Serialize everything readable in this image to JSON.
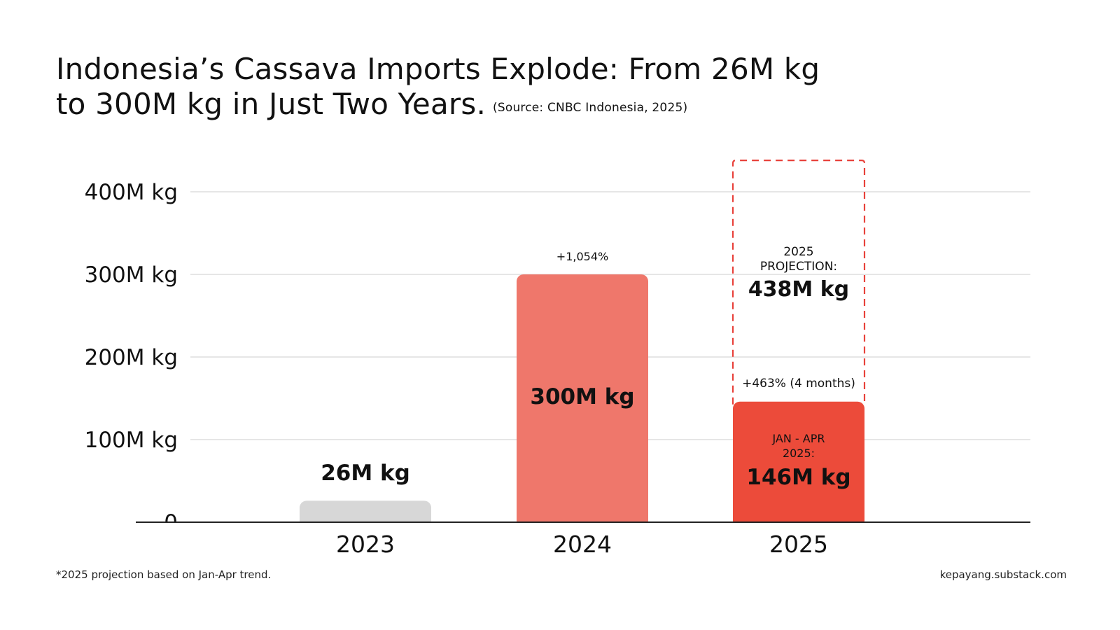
{
  "header": {
    "title_line1": "Indonesia’s Cassava Imports Explode: From 26M kg",
    "title_line2": "to 300M kg in Just Two Years.",
    "source": "(Source: CNBC Indonesia, 2025)"
  },
  "footer": {
    "footnote": "*2025 projection based on Jan-Apr trend.",
    "credit": "kepayang.substack.com"
  },
  "colors": {
    "bar_2023": "#d7d7d7",
    "bar_2024": "#ef776b",
    "bar_2025": "#ec4b3a",
    "projection_outline": "#e8413a",
    "gridline": "#dddddd",
    "axis": "#222222"
  },
  "chart_data": {
    "type": "bar",
    "title": "Indonesia’s Cassava Imports Explode: From 26M kg to 300M kg in Just Two Years.",
    "categories": [
      "2023",
      "2024",
      "2025"
    ],
    "values": [
      26,
      300,
      146
    ],
    "unit": "M kg",
    "ylim": [
      0,
      400
    ],
    "yticks": [
      0,
      100,
      200,
      300,
      400
    ],
    "ytick_labels": [
      "0",
      "100M kg",
      "200M kg",
      "300M kg",
      "400M kg"
    ],
    "grid": true,
    "bar_labels": [
      "26M kg",
      "300M kg",
      "146M kg"
    ],
    "bar_sublabels": [
      "",
      "",
      "JAN - APR\n2025:"
    ],
    "growth_labels": [
      "",
      "+1,054%",
      "+463% (4 months)"
    ],
    "projection": {
      "category": "2025",
      "value": 438,
      "label": "2025\nPROJECTION:",
      "value_label": "438M kg"
    }
  }
}
